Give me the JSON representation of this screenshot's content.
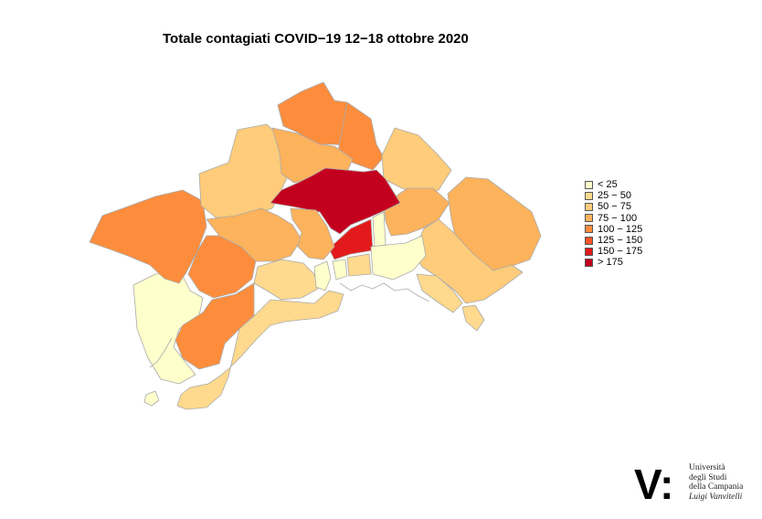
{
  "title": "Totale contagiati COVID−19 12−18 ottobre 2020",
  "colors": {
    "c0": "#ffffcc",
    "c1": "#fed98e",
    "c2": "#fecc7a",
    "c3": "#fdb25c",
    "c4": "#fd8d3c",
    "c5": "#f45528",
    "c6": "#e31a1c",
    "c7": "#c4001f"
  },
  "legend": {
    "items": [
      {
        "label": "< 25",
        "color": "#ffffcc"
      },
      {
        "label": "25 − 50",
        "color": "#fed98e"
      },
      {
        "label": "50 − 75",
        "color": "#fecc7a"
      },
      {
        "label": "75 − 100",
        "color": "#fdb25c"
      },
      {
        "label": "100 − 125",
        "color": "#fd8d3c"
      },
      {
        "label": "125 − 150",
        "color": "#f45528"
      },
      {
        "label": "150 − 175",
        "color": "#e31a1c"
      },
      {
        "label": "> 175",
        "color": "#c4001f"
      }
    ]
  },
  "logo": {
    "mark": "V:",
    "line1": "Università",
    "line2": "degli Studi",
    "line3": "della Campania",
    "line4": "Luigi Vanvitelli"
  }
}
